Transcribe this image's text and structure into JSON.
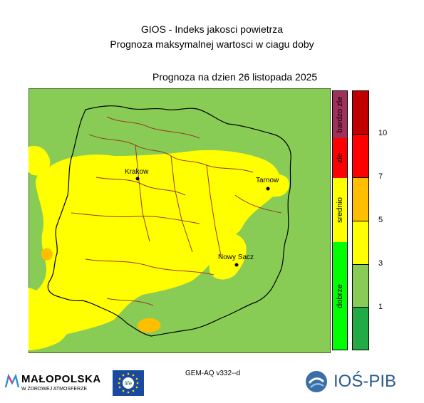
{
  "header": {
    "title_line1": "GIOS - Indeks jakosci powietrza",
    "title_line2": "Prognoza maksymalnej wartosci w ciagu doby",
    "date_line": "Prognoza na dzien  26 listopada 2025"
  },
  "map": {
    "cities": [
      {
        "name": "Krakow"
      },
      {
        "name": "Tarnow"
      },
      {
        "name": "Nowy Sacz"
      }
    ]
  },
  "legend": {
    "categories": [
      {
        "label": "bardzo zle",
        "color": "#a0305a"
      },
      {
        "label": "zle",
        "color": "#ff0000"
      },
      {
        "label": "srednio",
        "color": "#ffff00"
      },
      {
        "label": "dobrze",
        "color": "#00ff00"
      }
    ],
    "scale_colors": [
      "#c00000",
      "#ff0000",
      "#ffbf00",
      "#ffff00",
      "#88cc55",
      "#22aa44"
    ],
    "ticks": [
      "10",
      "7",
      "5",
      "3",
      "1"
    ]
  },
  "footer": {
    "model_label": "GEM-AQ v332--d",
    "logo_malopolska": "MAŁOPOLSKA",
    "logo_malopolska_sub": "W ZDROWEJ ATMOSFERZE",
    "logo_life": "life",
    "logo_ios": "IOŚ-PIB"
  },
  "colors": {
    "green_area": "#88cc55",
    "yellow_area": "#ffff00",
    "orange_area": "#ffbf00",
    "voivodeship_border": "#000000",
    "county_border": "#9a3a2a"
  }
}
